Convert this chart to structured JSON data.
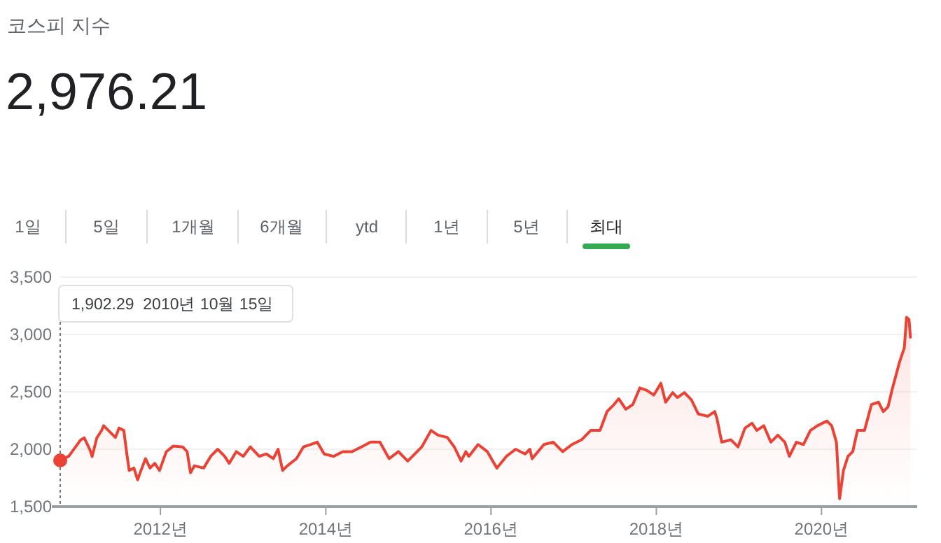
{
  "chart_data": {
    "type": "area",
    "title": "코스피 지수",
    "subtitle": "2,976.21",
    "x": [
      "2010-10-15",
      "2010-11-22",
      "2011-01-13",
      "2011-01-29",
      "2011-02-23",
      "2011-03-05",
      "2011-03-26",
      "2011-04-15",
      "2011-04-25",
      "2011-05-26",
      "2011-06-16",
      "2011-07-02",
      "2011-07-23",
      "2011-08-07",
      "2011-08-16",
      "2011-09-06",
      "2011-09-22",
      "2011-10-07",
      "2011-10-27",
      "2011-11-16",
      "2011-12-07",
      "2011-12-28",
      "2012-01-27",
      "2012-02-27",
      "2012-04-08",
      "2012-04-28",
      "2012-05-13",
      "2012-05-30",
      "2012-07-10",
      "2012-08-10",
      "2012-09-10",
      "2012-10-11",
      "2012-10-31",
      "2012-12-01",
      "2013-01-01",
      "2013-02-01",
      "2013-03-13",
      "2013-04-13",
      "2013-05-14",
      "2013-06-04",
      "2013-06-24",
      "2013-07-15",
      "2013-08-24",
      "2013-09-24",
      "2013-10-25",
      "2013-11-24",
      "2013-12-25",
      "2014-02-04",
      "2014-03-17",
      "2014-04-27",
      "2014-06-07",
      "2014-07-18",
      "2014-08-28",
      "2014-10-08",
      "2014-11-18",
      "2014-12-29",
      "2015-01-19",
      "2015-03-01",
      "2015-04-11",
      "2015-05-12",
      "2015-06-22",
      "2015-07-23",
      "2015-08-22",
      "2015-09-12",
      "2015-09-25",
      "2015-11-05",
      "2015-12-16",
      "2016-01-27",
      "2016-03-09",
      "2016-04-19",
      "2016-05-31",
      "2016-06-21",
      "2016-07-01",
      "2016-08-22",
      "2016-10-02",
      "2016-11-13",
      "2016-12-24",
      "2017-02-04",
      "2017-03-17",
      "2017-04-27",
      "2017-05-28",
      "2017-06-28",
      "2017-07-19",
      "2017-08-19",
      "2017-09-19",
      "2017-10-20",
      "2017-11-20",
      "2017-12-21",
      "2018-01-21",
      "2018-02-11",
      "2018-03-14",
      "2018-04-04",
      "2018-05-05",
      "2018-06-05",
      "2018-07-05",
      "2018-08-16",
      "2018-09-16",
      "2018-09-26",
      "2018-10-17",
      "2018-11-27",
      "2018-12-28",
      "2019-01-28",
      "2019-02-28",
      "2019-03-21",
      "2019-04-21",
      "2019-05-22",
      "2019-06-22",
      "2019-07-23",
      "2019-08-12",
      "2019-09-12",
      "2019-10-13",
      "2019-11-13",
      "2019-12-14",
      "2020-01-25",
      "2020-02-15",
      "2020-03-07",
      "2020-03-21",
      "2020-04-07",
      "2020-04-27",
      "2020-05-18",
      "2020-06-08",
      "2020-07-09",
      "2020-08-09",
      "2020-09-09",
      "2020-09-30",
      "2020-10-21",
      "2020-11-10",
      "2020-12-11",
      "2021-01-01",
      "2021-01-11",
      "2021-01-22",
      "2021-01-28"
    ],
    "series": [
      {
        "color": "#ea4335",
        "values": [
          1902.29,
          1940,
          2080,
          2100,
          1997,
          1936,
          2100,
          2160,
          2205,
          2144,
          2103,
          2185,
          2164,
          1938,
          1815,
          1836,
          1733,
          1815,
          1918,
          1836,
          1877,
          1815,
          1979,
          2028,
          2020,
          1979,
          1795,
          1856,
          1836,
          1938,
          2000,
          1938,
          1877,
          1979,
          1938,
          2020,
          1938,
          1959,
          1918,
          2000,
          1815,
          1856,
          1918,
          2020,
          2041,
          2062,
          1959,
          1938,
          1979,
          1979,
          2020,
          2062,
          2062,
          1918,
          1979,
          1897,
          1938,
          2020,
          2164,
          2123,
          2103,
          2020,
          1897,
          1979,
          1938,
          2041,
          1979,
          1836,
          1938,
          2000,
          1959,
          2000,
          1918,
          2041,
          2062,
          1979,
          2041,
          2082,
          2164,
          2164,
          2328,
          2390,
          2440,
          2349,
          2390,
          2534,
          2513,
          2472,
          2575,
          2410,
          2493,
          2451,
          2493,
          2431,
          2308,
          2287,
          2328,
          2267,
          2062,
          2082,
          2020,
          2185,
          2226,
          2164,
          2205,
          2062,
          2123,
          2062,
          1938,
          2062,
          2041,
          2164,
          2205,
          2246,
          2205,
          2062,
          1569,
          1815,
          1938,
          1979,
          2164,
          2164,
          2390,
          2410,
          2328,
          2369,
          2534,
          2760,
          2883,
          3150,
          3130,
          2976
        ]
      }
    ],
    "xlim": [
      "2010-10-15",
      "2021-02-27"
    ],
    "xticks": [
      {
        "value": "2012-01-01",
        "label": "2012년"
      },
      {
        "value": "2014-01-01",
        "label": "2014년"
      },
      {
        "value": "2016-01-01",
        "label": "2016년"
      },
      {
        "value": "2018-01-01",
        "label": "2018년"
      },
      {
        "value": "2020-01-01",
        "label": "2020년"
      }
    ],
    "ylim": [
      1500,
      3500
    ],
    "yticks": [
      {
        "value": 1500,
        "label": "1,500"
      },
      {
        "value": 2000,
        "label": "2,000"
      },
      {
        "value": 2500,
        "label": "2,500"
      },
      {
        "value": 3000,
        "label": "3,000"
      },
      {
        "value": 3500,
        "label": "3,500"
      }
    ],
    "grid": "y",
    "marker": "none",
    "line_style": "solid",
    "annotations": [
      "1,902.29  2010년 10월 15일",
      "1일",
      "5일",
      "1개월",
      "6개월",
      "ytd",
      "1년",
      "5년",
      "최대"
    ]
  }
}
